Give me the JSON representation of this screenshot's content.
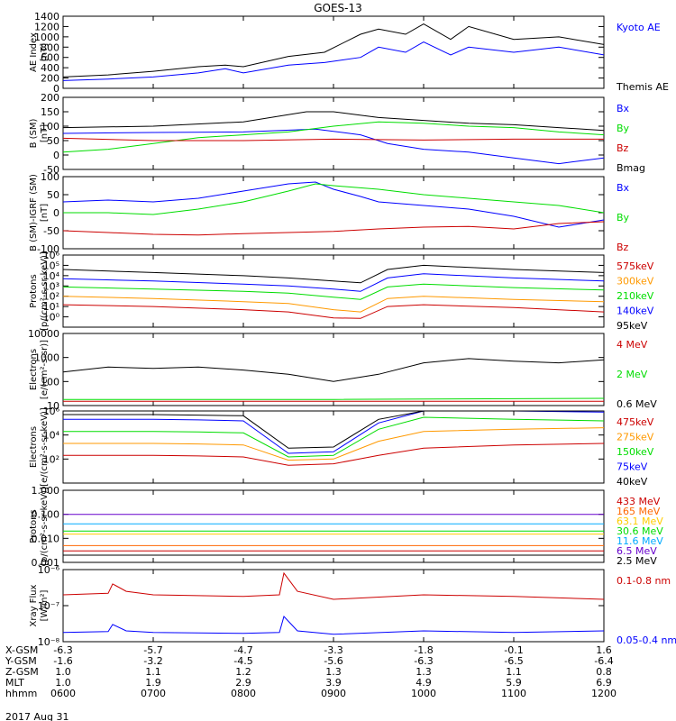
{
  "title": "GOES-13",
  "time_axis": {
    "ticks": [
      "0600",
      "0700",
      "0800",
      "0900",
      "1000",
      "1100",
      "1200"
    ],
    "rows": [
      {
        "label": "X-GSM",
        "values": [
          "-6.3",
          "-5.7",
          "-4.7",
          "-3.3",
          "-1.8",
          "-0.1",
          "1.6"
        ]
      },
      {
        "label": "Y-GSM",
        "values": [
          "-1.6",
          "-3.2",
          "-4.5",
          "-5.6",
          "-6.3",
          "-6.5",
          "-6.4"
        ]
      },
      {
        "label": "Z-GSM",
        "values": [
          "1.0",
          "1.1",
          "1.2",
          "1.3",
          "1.3",
          "1.1",
          "0.8"
        ]
      },
      {
        "label": "MLT",
        "values": [
          "1.0",
          "1.9",
          "2.9",
          "3.9",
          "4.9",
          "5.9",
          "6.9"
        ]
      },
      {
        "label": "hhmm",
        "values": [
          "0600",
          "0700",
          "0800",
          "0900",
          "1000",
          "1100",
          "1200"
        ]
      }
    ],
    "date": "2017 Aug 31"
  },
  "chart_data": [
    {
      "type": "line",
      "ylabel": "AE Index\n[nT]",
      "ylim": [
        0,
        1400
      ],
      "yticks": [
        "0",
        "200",
        "400",
        "600",
        "800",
        "1000",
        "1200",
        "1400"
      ],
      "series": [
        {
          "name": "Kyoto AE",
          "color": "#0000ff",
          "x": [
            6.0,
            6.5,
            7.0,
            7.5,
            7.8,
            8.0,
            8.5,
            8.9,
            9.3,
            9.5,
            9.8,
            10.0,
            10.3,
            10.5,
            11.0,
            11.5,
            12.0
          ],
          "y": [
            150,
            180,
            220,
            300,
            380,
            300,
            450,
            500,
            600,
            800,
            700,
            900,
            650,
            800,
            700,
            800,
            650
          ]
        },
        {
          "name": "Themis AE",
          "color": "#000000",
          "x": [
            6.0,
            6.5,
            7.0,
            7.5,
            7.8,
            8.0,
            8.5,
            8.9,
            9.3,
            9.5,
            9.8,
            10.0,
            10.3,
            10.5,
            11.0,
            11.5,
            12.0
          ],
          "y": [
            220,
            260,
            330,
            420,
            450,
            420,
            620,
            700,
            1050,
            1150,
            1050,
            1250,
            950,
            1200,
            950,
            1000,
            850
          ]
        }
      ]
    },
    {
      "type": "line",
      "ylabel": "B (SM)\n[nT]",
      "ylim": [
        -50,
        200
      ],
      "yticks": [
        "-50",
        "0",
        "50",
        "100",
        "150",
        "200"
      ],
      "series": [
        {
          "name": "Bx",
          "color": "#0000ff",
          "x": [
            6.0,
            7.0,
            8.0,
            8.8,
            9.3,
            9.6,
            10.0,
            10.5,
            11.0,
            11.5,
            12.0
          ],
          "y": [
            75,
            78,
            80,
            90,
            70,
            40,
            20,
            10,
            -10,
            -30,
            -10
          ]
        },
        {
          "name": "By",
          "color": "#00dd00",
          "x": [
            6.0,
            6.5,
            7.0,
            7.5,
            8.0,
            8.5,
            9.0,
            9.5,
            10.0,
            10.5,
            11.0,
            11.5,
            12.0
          ],
          "y": [
            10,
            20,
            40,
            60,
            70,
            80,
            100,
            115,
            110,
            100,
            95,
            80,
            70
          ]
        },
        {
          "name": "Bz",
          "color": "#cc0000",
          "x": [
            6.0,
            7.0,
            8.0,
            9.0,
            10.0,
            11.0,
            12.0
          ],
          "y": [
            58,
            50,
            50,
            55,
            52,
            55,
            55
          ]
        },
        {
          "name": "Bmag",
          "color": "#000000",
          "x": [
            6.0,
            7.0,
            8.0,
            8.7,
            9.0,
            9.5,
            10.0,
            10.5,
            11.0,
            11.5,
            12.0
          ],
          "y": [
            95,
            100,
            115,
            150,
            150,
            130,
            120,
            110,
            105,
            95,
            85
          ]
        }
      ]
    },
    {
      "type": "line",
      "ylabel": "B (SM)-IGRF (SM)\n[nT]",
      "ylim": [
        -100,
        100
      ],
      "yticks": [
        "-100",
        "-50",
        "0",
        "50",
        "100"
      ],
      "series": [
        {
          "name": "Bx",
          "color": "#0000ff",
          "x": [
            6.0,
            6.5,
            7.0,
            7.5,
            8.0,
            8.5,
            8.8,
            9.0,
            9.3,
            9.5,
            10.0,
            10.5,
            11.0,
            11.5,
            12.0
          ],
          "y": [
            30,
            35,
            30,
            40,
            60,
            80,
            85,
            65,
            45,
            30,
            20,
            10,
            -10,
            -40,
            -20
          ]
        },
        {
          "name": "By",
          "color": "#00dd00",
          "x": [
            6.0,
            6.5,
            7.0,
            7.5,
            8.0,
            8.5,
            8.8,
            9.0,
            9.5,
            10.0,
            10.5,
            11.0,
            11.5,
            12.0
          ],
          "y": [
            0,
            0,
            -5,
            10,
            30,
            60,
            80,
            75,
            65,
            50,
            40,
            30,
            20,
            0
          ]
        },
        {
          "name": "Bz",
          "color": "#cc0000",
          "x": [
            6.0,
            6.5,
            7.0,
            7.5,
            8.0,
            8.5,
            9.0,
            9.5,
            10.0,
            10.5,
            11.0,
            11.5,
            12.0
          ],
          "y": [
            -50,
            -55,
            -60,
            -62,
            -58,
            -55,
            -52,
            -45,
            -40,
            -38,
            -45,
            -30,
            -25
          ]
        }
      ]
    },
    {
      "type": "line",
      "yscale": "log",
      "ylabel": "Protons\n[p/(cm²-s-sr-keV)]",
      "ylim": [
        0.1,
        1000000
      ],
      "yticks_exp": [
        0,
        1,
        2,
        3,
        4,
        5,
        6
      ],
      "series": [
        {
          "name": "575keV",
          "color": "#cc0000",
          "x": [
            6.0,
            7.0,
            8.0,
            8.5,
            9.0,
            9.3,
            9.6,
            10.0,
            11.0,
            12.0
          ],
          "y": [
            15,
            10,
            5,
            3,
            0.8,
            0.7,
            10,
            15,
            8,
            3
          ]
        },
        {
          "name": "300keV",
          "color": "#ff9900",
          "x": [
            6.0,
            7.0,
            8.0,
            8.5,
            9.0,
            9.3,
            9.6,
            10.0,
            11.0,
            12.0
          ],
          "y": [
            100,
            60,
            30,
            20,
            5,
            3,
            60,
            100,
            50,
            30
          ]
        },
        {
          "name": "210keV",
          "color": "#00dd00",
          "x": [
            6.0,
            7.0,
            8.0,
            8.5,
            9.0,
            9.3,
            9.6,
            10.0,
            11.0,
            12.0
          ],
          "y": [
            800,
            500,
            300,
            200,
            80,
            50,
            800,
            1500,
            700,
            400
          ]
        },
        {
          "name": "140keV",
          "color": "#0000ff",
          "x": [
            6.0,
            7.0,
            8.0,
            8.5,
            9.0,
            9.3,
            9.6,
            10.0,
            11.0,
            12.0
          ],
          "y": [
            5000,
            3000,
            1500,
            1000,
            500,
            300,
            6000,
            15000,
            6000,
            3000
          ]
        },
        {
          "name": "95keV",
          "color": "#000000",
          "x": [
            6.0,
            7.0,
            8.0,
            8.5,
            9.0,
            9.3,
            9.6,
            10.0,
            11.0,
            12.0
          ],
          "y": [
            40000,
            20000,
            10000,
            6000,
            3000,
            2000,
            40000,
            100000,
            40000,
            20000
          ]
        }
      ]
    },
    {
      "type": "line",
      "yscale": "log",
      "ylabel": "Electrons\n[e/(cm²-s-sr)]",
      "ylim": [
        10,
        10000
      ],
      "yticks": [
        "10",
        "100",
        "1000",
        "10000"
      ],
      "series": [
        {
          "name": "4 MeV",
          "color": "#cc0000",
          "x": [
            6.0,
            9.0,
            12.0
          ],
          "y": [
            15,
            15,
            15
          ]
        },
        {
          "name": "2 MeV",
          "color": "#00dd00",
          "x": [
            6.0,
            9.0,
            12.0
          ],
          "y": [
            18,
            18,
            20
          ]
        },
        {
          "name": "0.6 MeV",
          "color": "#000000",
          "x": [
            6.0,
            6.5,
            7.0,
            7.5,
            8.0,
            8.5,
            9.0,
            9.5,
            10.0,
            10.5,
            11.0,
            11.5,
            12.0
          ],
          "y": [
            250,
            400,
            350,
            400,
            300,
            200,
            100,
            200,
            600,
            900,
            700,
            600,
            800
          ]
        }
      ]
    },
    {
      "type": "line",
      "yscale": "log",
      "ylabel": "Electrons\n[e/(cm²-s-sr-keV)]",
      "ylim": [
        1,
        1000000
      ],
      "yticks_exp": [
        2,
        4,
        6
      ],
      "series": [
        {
          "name": "475keV",
          "color": "#cc0000",
          "x": [
            6.0,
            7.0,
            7.5,
            8.0,
            8.5,
            9.0,
            9.5,
            10.0,
            11.0,
            12.0
          ],
          "y": [
            200,
            200,
            180,
            150,
            30,
            40,
            200,
            800,
            1500,
            2000
          ]
        },
        {
          "name": "275keV",
          "color": "#ff9900",
          "x": [
            6.0,
            7.0,
            7.5,
            8.0,
            8.5,
            9.0,
            9.5,
            10.0,
            11.0,
            12.0
          ],
          "y": [
            2000,
            2000,
            1800,
            1500,
            80,
            100,
            3000,
            20000,
            30000,
            40000
          ]
        },
        {
          "name": "150keV",
          "color": "#00dd00",
          "x": [
            6.0,
            7.0,
            7.5,
            8.0,
            8.5,
            9.0,
            9.5,
            10.0,
            11.0,
            12.0
          ],
          "y": [
            20000,
            20000,
            18000,
            15000,
            150,
            200,
            30000,
            300000,
            200000,
            150000
          ]
        },
        {
          "name": "75keV",
          "color": "#0000ff",
          "x": [
            6.0,
            7.0,
            7.5,
            8.0,
            8.5,
            9.0,
            9.5,
            10.0,
            11.0,
            12.0
          ],
          "y": [
            200000,
            200000,
            180000,
            150000,
            300,
            400,
            100000,
            1000000,
            1000000,
            800000
          ]
        },
        {
          "name": "40keV",
          "color": "#000000",
          "x": [
            6.0,
            7.0,
            7.5,
            8.0,
            8.5,
            9.0,
            9.5,
            10.0,
            11.0,
            12.0
          ],
          "y": [
            500000,
            500000,
            450000,
            400000,
            800,
            1000,
            200000,
            1500000,
            1500000,
            1000000
          ]
        }
      ]
    },
    {
      "type": "line",
      "yscale": "log",
      "ylabel": "Protons\n[p/(cm²-s-sr-keV)]",
      "ylim": [
        0.001,
        1
      ],
      "yticks": [
        "0.001",
        "0.010",
        "0.100",
        "1.000"
      ],
      "series": [
        {
          "name": "433 MeV",
          "color": "#cc0000",
          "x": [
            6.0,
            12.0
          ],
          "y": [
            0.003,
            0.003
          ]
        },
        {
          "name": "165 MeV",
          "color": "#ff6600",
          "x": [
            6.0,
            12.0
          ],
          "y": [
            0.005,
            0.005
          ]
        },
        {
          "name": "63.1 MeV",
          "color": "#ffcc00",
          "x": [
            6.0,
            12.0
          ],
          "y": [
            0.015,
            0.015
          ]
        },
        {
          "name": "30.6 MeV",
          "color": "#00dd00",
          "x": [
            6.0,
            12.0
          ],
          "y": [
            0.02,
            0.02
          ]
        },
        {
          "name": "11.6 MeV",
          "color": "#00aaff",
          "x": [
            6.0,
            12.0
          ],
          "y": [
            0.04,
            0.04
          ]
        },
        {
          "name": "6.5 MeV",
          "color": "#6600cc",
          "x": [
            6.0,
            12.0
          ],
          "y": [
            0.1,
            0.1
          ]
        },
        {
          "name": "2.5 MeV",
          "color": "#000000",
          "x": [
            6.0,
            12.0
          ],
          "y": [
            0.002,
            0.002
          ]
        }
      ]
    },
    {
      "type": "line",
      "yscale": "log",
      "ylabel": "Xray Flux\n[W/m²]",
      "ylim": [
        1e-08,
        1e-06
      ],
      "yticks_exp": [
        -8,
        -7,
        -6
      ],
      "series": [
        {
          "name": "0.1-0.8 nm",
          "color": "#cc0000",
          "x": [
            6.0,
            6.5,
            6.55,
            6.7,
            7.0,
            8.0,
            8.4,
            8.45,
            8.6,
            9.0,
            10.0,
            11.0,
            12.0
          ],
          "y": [
            2e-07,
            2.2e-07,
            4e-07,
            2.5e-07,
            2e-07,
            1.8e-07,
            2e-07,
            8e-07,
            2.5e-07,
            1.5e-07,
            2e-07,
            1.8e-07,
            1.5e-07
          ]
        },
        {
          "name": "0.05-0.4 nm",
          "color": "#0000ff",
          "x": [
            6.0,
            6.5,
            6.55,
            6.7,
            7.0,
            8.0,
            8.4,
            8.45,
            8.6,
            9.0,
            10.0,
            11.0,
            12.0
          ],
          "y": [
            1.8e-08,
            1.9e-08,
            3e-08,
            2e-08,
            1.8e-08,
            1.7e-08,
            1.8e-08,
            5e-08,
            2e-08,
            1.6e-08,
            2e-08,
            1.8e-08,
            2e-08
          ]
        }
      ]
    }
  ]
}
